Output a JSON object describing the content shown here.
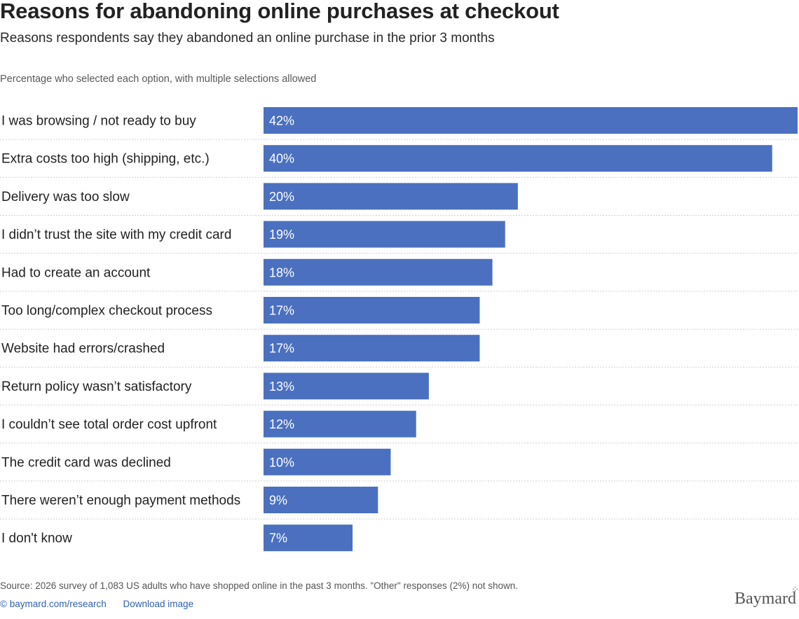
{
  "title": "Reasons for abandoning online purchases at checkout",
  "subtitle": "Reasons respondents say they abandoned an online purchase in the prior 3 months",
  "note": "Percentage who selected each option, with multiple selections allowed",
  "chart_data": {
    "type": "bar",
    "orientation": "horizontal",
    "title": "Reasons for abandoning online purchases at checkout",
    "subtitle": "Reasons respondents say they abandoned an online purchase in the prior 3 months",
    "categories": [
      "I was browsing / not ready to buy",
      "Extra costs too high (shipping, etc.)",
      "Delivery was too slow",
      "I didn’t trust the site with my credit card",
      "Had to create an account",
      "Too long/complex checkout process",
      "Website had errors/crashed",
      "Return policy wasn’t satisfactory",
      "I couldn’t see total order cost upfront",
      "The credit card was declined",
      "There weren’t enough payment methods",
      "I don't know"
    ],
    "values": [
      42,
      40,
      20,
      19,
      18,
      17,
      17,
      13,
      12,
      10,
      9,
      7
    ],
    "value_labels": [
      "42%",
      "40%",
      "20%",
      "19%",
      "18%",
      "17%",
      "17%",
      "13%",
      "12%",
      "10%",
      "9%",
      "7%"
    ],
    "unit": "%",
    "xlim": [
      0,
      42
    ],
    "grid": false,
    "legend": "none",
    "bar_color": "#4a70bf"
  },
  "footer": {
    "source": "Source: 2026 survey of 1,083 US adults who have shopped online in the past 3 months. \"Other\" responses (2%) not shown.",
    "research_link": "© baymard.com/research",
    "download_link": "Download image",
    "brand": "Baymard",
    "link_color": "#2f5fae"
  }
}
